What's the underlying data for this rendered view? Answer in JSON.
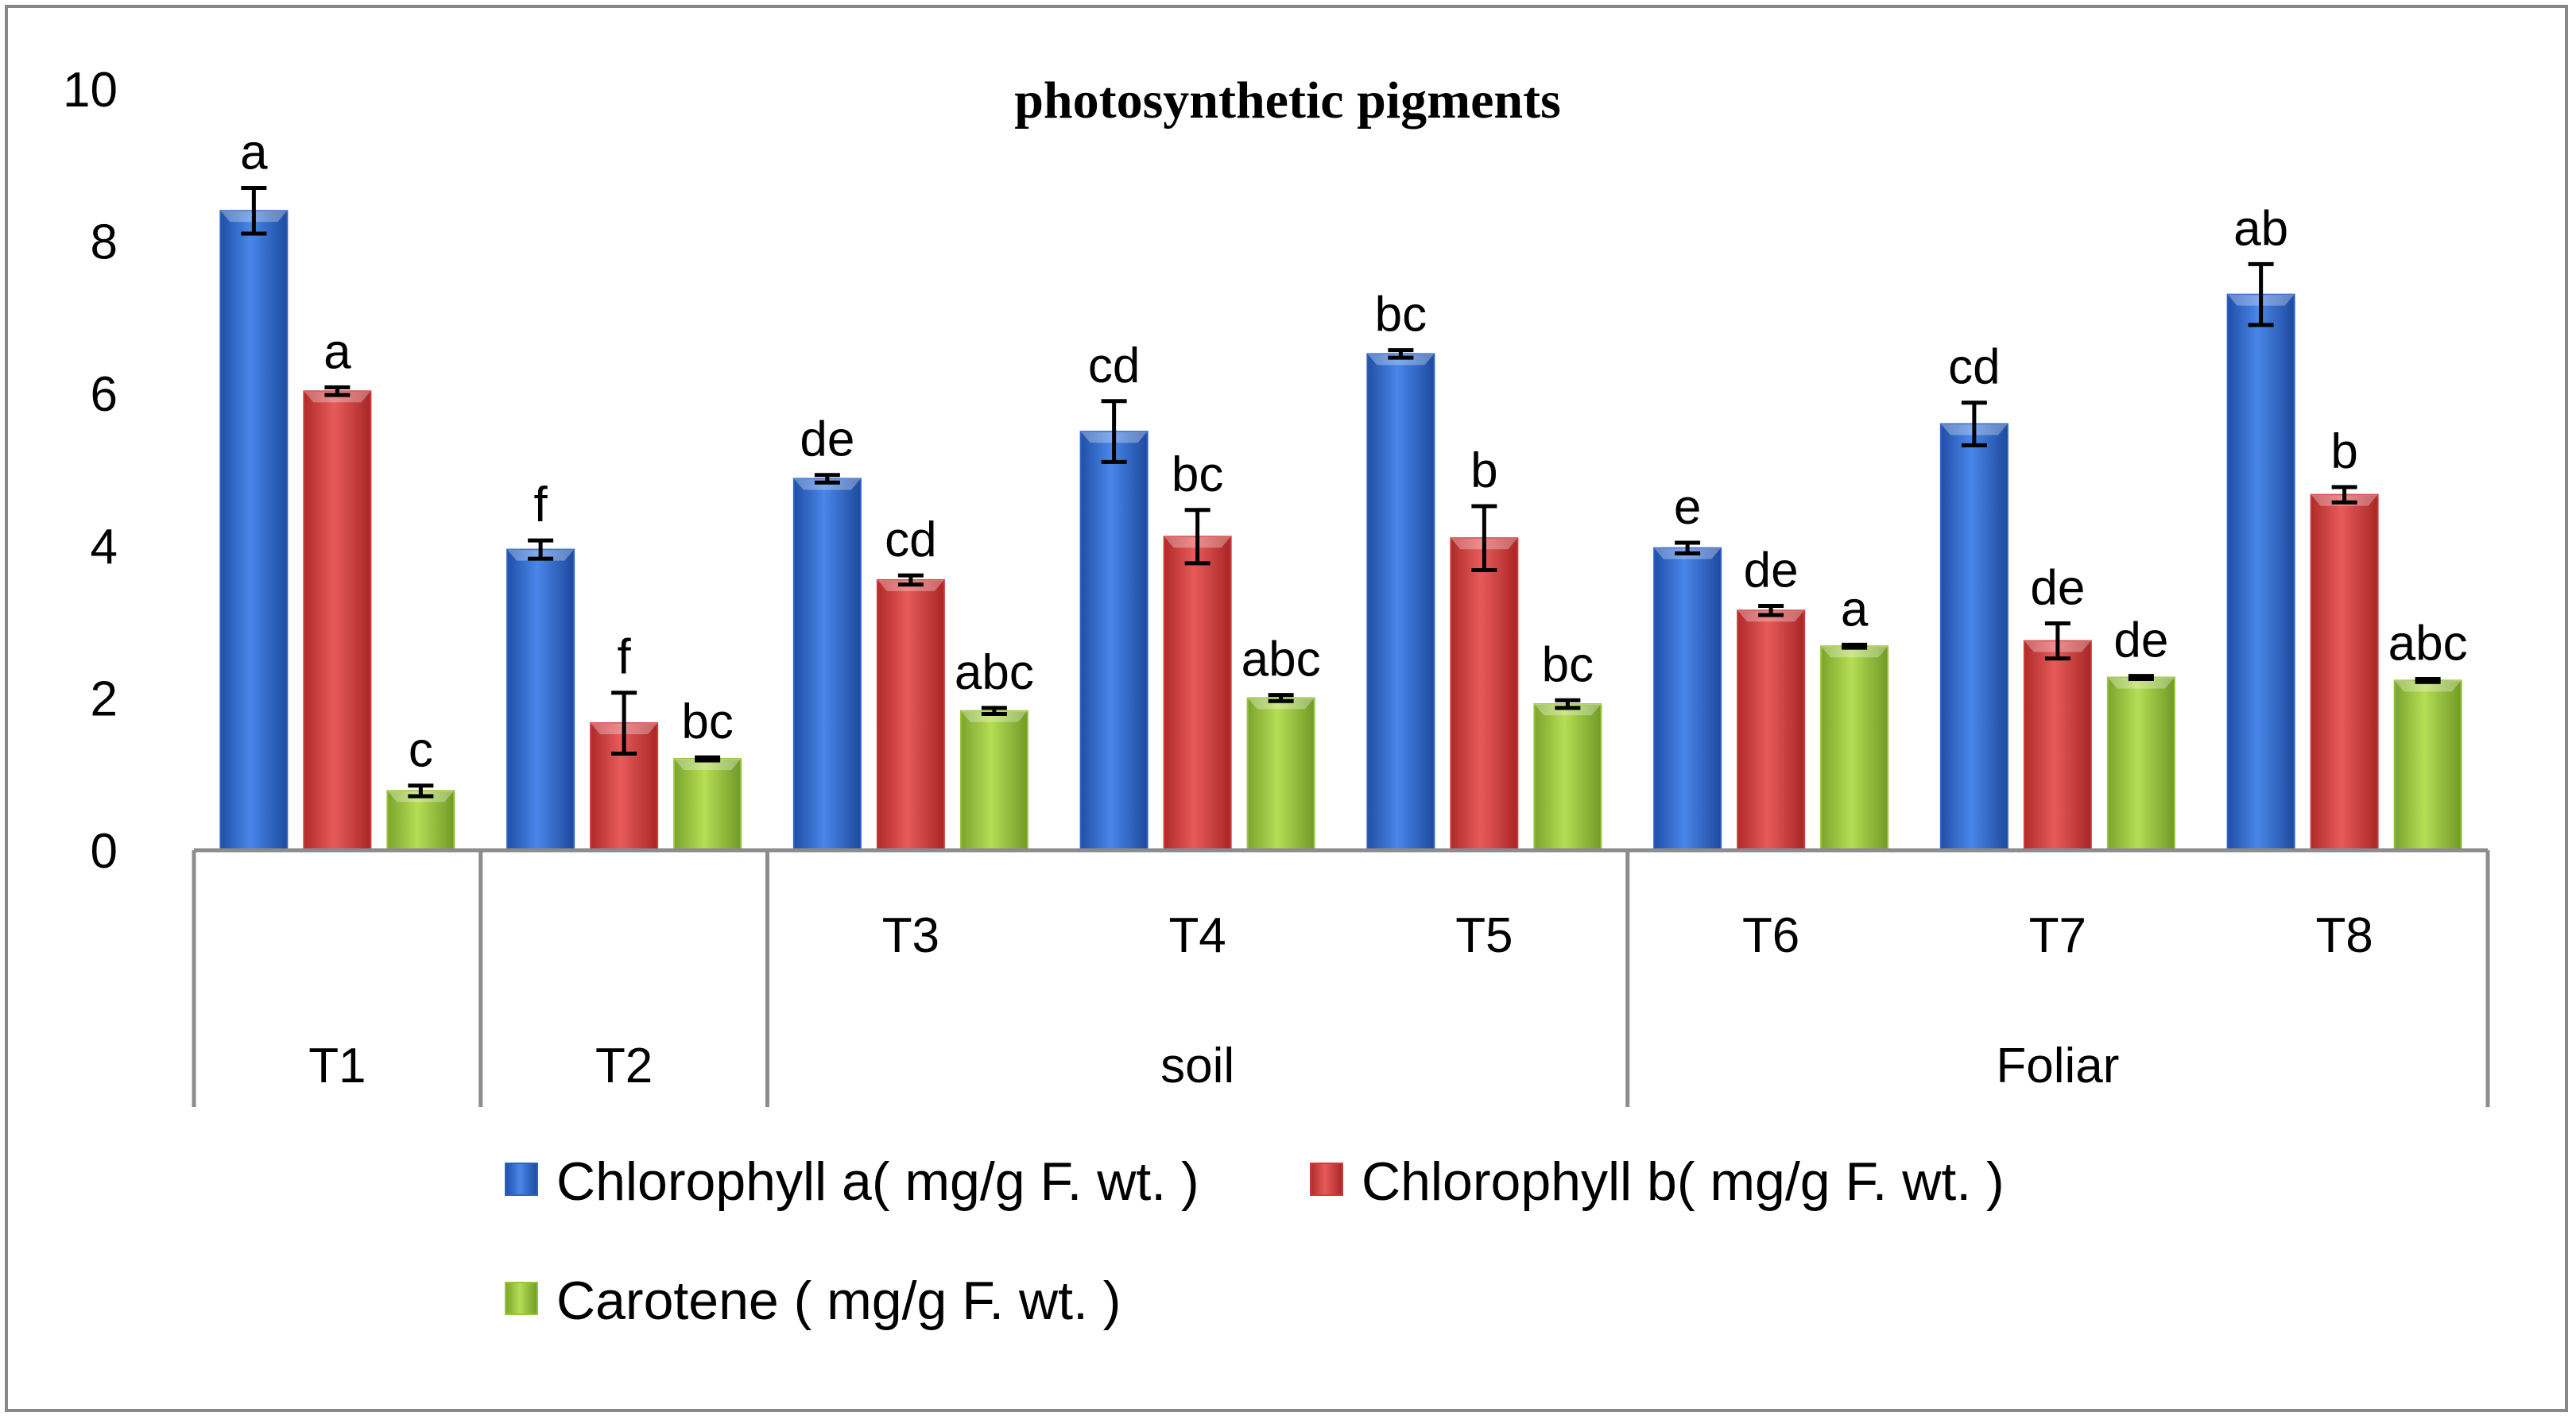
{
  "chart_data": {
    "type": "bar",
    "title": "photosynthetic pigments",
    "xlabel": "",
    "ylabel": "",
    "ylim": [
      0,
      10
    ],
    "yticks": [
      "0",
      "2",
      "4",
      "6",
      "8",
      "10"
    ],
    "categories": [
      "T1",
      "T2",
      "T3",
      "T4",
      "T5",
      "T6",
      "T7",
      "T8"
    ],
    "category_groups": [
      {
        "label": "T1",
        "members": [
          "T1"
        ]
      },
      {
        "label": "T2",
        "members": [
          "T2"
        ]
      },
      {
        "label": "soil",
        "members": [
          "T3",
          "T4",
          "T5"
        ]
      },
      {
        "label": "Foliar",
        "members": [
          "T6",
          "T7",
          "T8"
        ]
      }
    ],
    "series": [
      {
        "name": "Chlorophyll a( mg/g F. wt. )",
        "color": "#2e63c4",
        "values": [
          8.4,
          3.95,
          4.88,
          5.5,
          6.52,
          3.97,
          5.6,
          7.3
        ],
        "errors": [
          0.3,
          0.12,
          0.05,
          0.4,
          0.05,
          0.07,
          0.28,
          0.4
        ],
        "labels": [
          "a",
          "f",
          "de",
          "cd",
          "bc",
          "e",
          "cd",
          "ab"
        ]
      },
      {
        "name": "Chlorophyll b( mg/g F. wt. )",
        "color": "#cf3b3b",
        "values": [
          6.03,
          1.67,
          3.55,
          4.12,
          4.1,
          3.15,
          2.75,
          4.67
        ],
        "errors": [
          0.05,
          0.4,
          0.06,
          0.35,
          0.42,
          0.06,
          0.23,
          0.1
        ],
        "labels": [
          "a",
          "f",
          "cd",
          "bc",
          "b",
          "de",
          "de",
          "b"
        ]
      },
      {
        "name": "Carotene ( mg/g F. wt. )",
        "color": "#9ac43c",
        "values": [
          0.78,
          1.2,
          1.83,
          2.0,
          1.92,
          2.68,
          2.27,
          2.23
        ],
        "errors": [
          0.07,
          0.02,
          0.04,
          0.04,
          0.05,
          0.02,
          0.02,
          0.02
        ],
        "labels": [
          "c",
          "bc",
          "abc",
          "abc",
          "bc",
          "a",
          "de",
          "abc"
        ]
      }
    ],
    "grid": false,
    "legend_position": "bottom"
  }
}
